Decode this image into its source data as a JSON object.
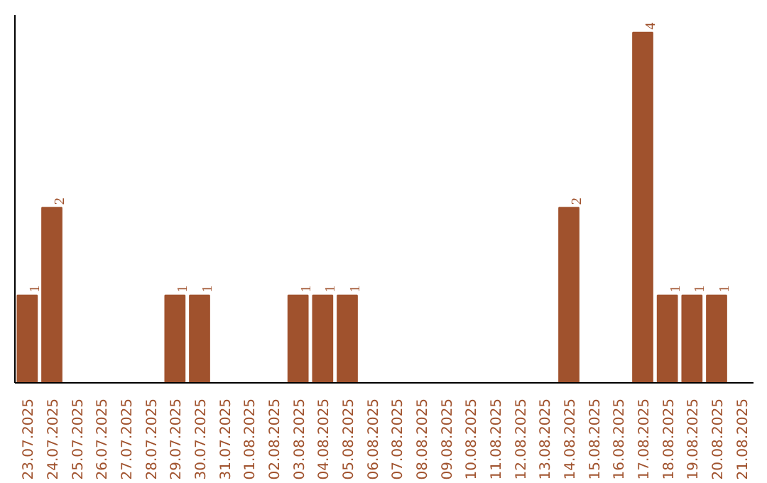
{
  "chart_data": {
    "type": "bar",
    "categories": [
      "23.07.2025",
      "24.07.2025",
      "25.07.2025",
      "26.07.2025",
      "27.07.2025",
      "28.07.2025",
      "29.07.2025",
      "30.07.2025",
      "31.07.2025",
      "01.08.2025",
      "02.08.2025",
      "03.08.2025",
      "04.08.2025",
      "05.08.2025",
      "06.08.2025",
      "07.08.2025",
      "08.08.2025",
      "09.08.2025",
      "10.08.2025",
      "11.08.2025",
      "12.08.2025",
      "13.08.2025",
      "14.08.2025",
      "15.08.2025",
      "16.08.2025",
      "17.08.2025",
      "18.08.2025",
      "19.08.2025",
      "20.08.2025",
      "21.08.2025"
    ],
    "values": [
      1,
      2,
      0,
      0,
      0,
      0,
      1,
      1,
      0,
      0,
      0,
      1,
      1,
      1,
      0,
      0,
      0,
      0,
      0,
      0,
      0,
      0,
      2,
      0,
      0,
      4,
      1,
      1,
      1,
      0
    ],
    "value_labels": [
      "1",
      "2",
      null,
      null,
      null,
      null,
      "1",
      "1",
      null,
      null,
      null,
      "1",
      "1",
      "1",
      null,
      null,
      null,
      null,
      null,
      null,
      null,
      null,
      "2",
      null,
      null,
      "4",
      "1",
      "1",
      "1",
      null
    ],
    "color": "#a0522d",
    "ylim": [
      0,
      4.2
    ],
    "tick_labels": "x"
  }
}
